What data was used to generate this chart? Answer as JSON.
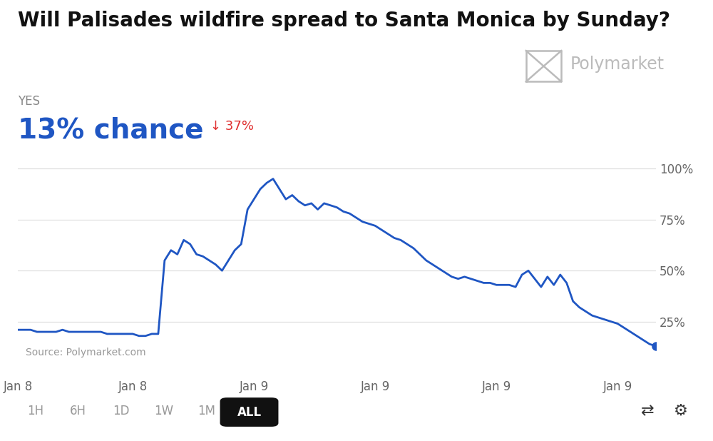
{
  "title": "Will Palisades wildfire spread to Santa Monica by Sunday?",
  "yes_label": "YES",
  "chance_text": "13% chance",
  "change_text": "↓ 37%",
  "source_text": "Source: Polymarket.com",
  "polymarket_label": "Polymarket",
  "background_color": "#ffffff",
  "line_color": "#1f56c3",
  "dot_color": "#1f56c3",
  "chance_color": "#1f56c3",
  "change_color": "#e03030",
  "title_fontsize": 20,
  "yes_fontsize": 12,
  "chance_fontsize": 28,
  "change_fontsize": 13,
  "ytick_labels": [
    "25%",
    "50%",
    "75%",
    "100%"
  ],
  "ytick_values": [
    25,
    50,
    75,
    100
  ],
  "xtick_labels": [
    "Jan 8",
    "Jan 8",
    "Jan 9",
    "Jan 9",
    "Jan 9",
    "Jan 9"
  ],
  "ylim": [
    0,
    107
  ],
  "grid_color": "#e0e0e0",
  "time_buttons": [
    "1H",
    "6H",
    "1D",
    "1W",
    "1M",
    "ALL"
  ],
  "active_button": "ALL",
  "x": [
    0,
    1,
    2,
    3,
    4,
    5,
    6,
    7,
    8,
    9,
    10,
    11,
    12,
    13,
    14,
    15,
    16,
    17,
    18,
    19,
    20,
    21,
    22,
    23,
    24,
    25,
    26,
    27,
    28,
    29,
    30,
    31,
    32,
    33,
    34,
    35,
    36,
    37,
    38,
    39,
    40,
    41,
    42,
    43,
    44,
    45,
    46,
    47,
    48,
    49,
    50,
    51,
    52,
    53,
    54,
    55,
    56,
    57,
    58,
    59,
    60,
    61,
    62,
    63,
    64,
    65,
    66,
    67,
    68,
    69,
    70,
    71,
    72,
    73,
    74,
    75,
    76,
    77,
    78,
    79,
    80,
    81,
    82,
    83,
    84,
    85,
    86,
    87,
    88,
    89,
    90,
    91,
    92,
    93,
    94,
    95,
    96,
    97,
    98,
    99,
    100
  ],
  "y": [
    21,
    21,
    21,
    20,
    20,
    20,
    20,
    21,
    20,
    20,
    20,
    20,
    20,
    20,
    19,
    19,
    19,
    19,
    19,
    18,
    18,
    19,
    19,
    55,
    60,
    58,
    65,
    63,
    58,
    57,
    55,
    53,
    50,
    55,
    60,
    63,
    80,
    85,
    90,
    93,
    95,
    90,
    85,
    87,
    84,
    82,
    83,
    80,
    83,
    82,
    81,
    79,
    78,
    76,
    74,
    73,
    72,
    70,
    68,
    66,
    65,
    63,
    61,
    58,
    55,
    53,
    51,
    49,
    47,
    46,
    47,
    46,
    45,
    44,
    44,
    43,
    43,
    43,
    42,
    48,
    50,
    46,
    42,
    47,
    43,
    48,
    44,
    35,
    32,
    30,
    28,
    27,
    26,
    25,
    24,
    22,
    20,
    18,
    16,
    14,
    13
  ],
  "logo_color": "#bbbbbb",
  "tick_color": "#666666",
  "source_color": "#999999",
  "yes_color": "#888888"
}
